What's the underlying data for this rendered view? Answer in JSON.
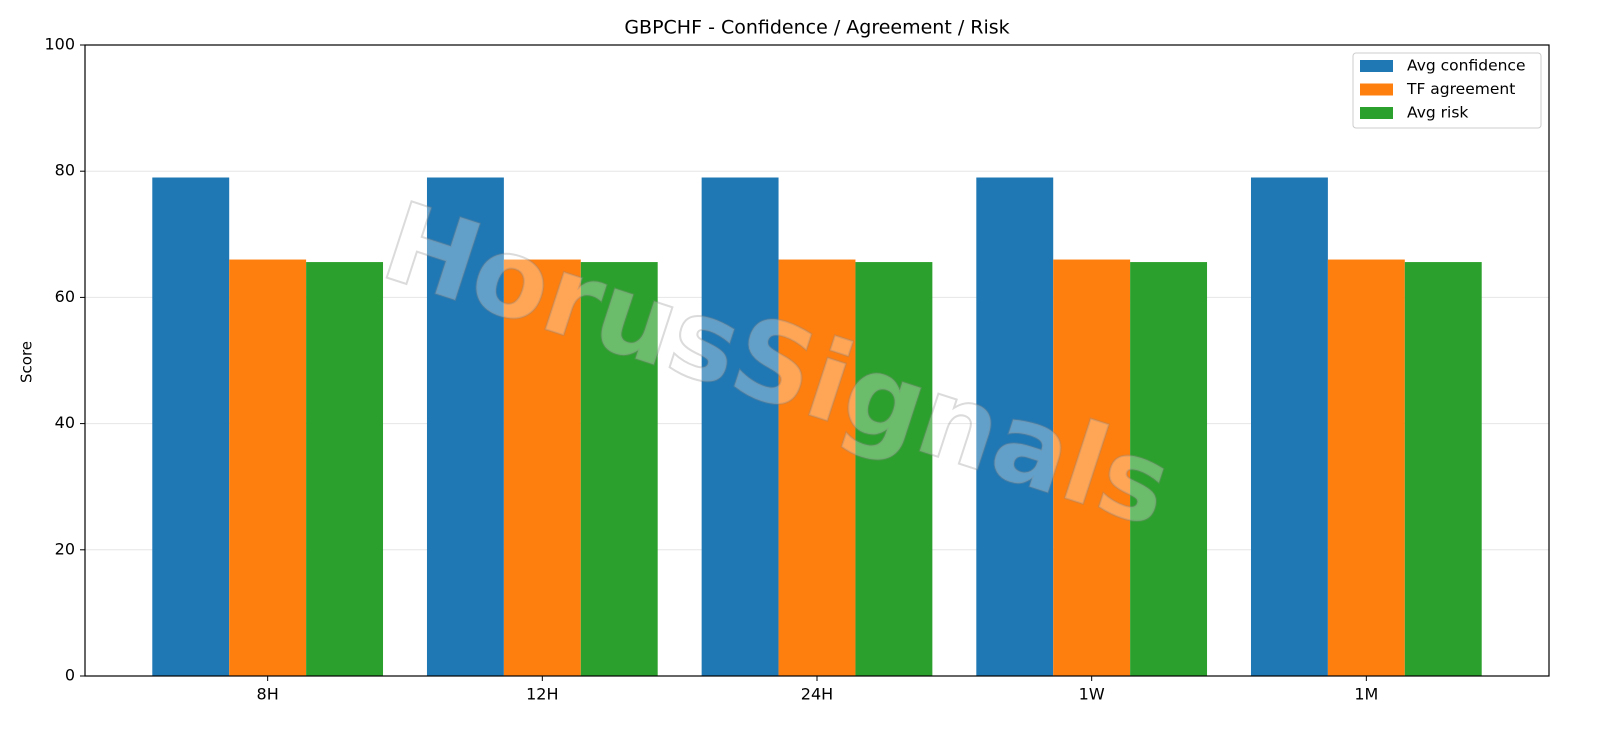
{
  "chart_data": {
    "type": "bar",
    "title": "GBPCHF - Confidence / Agreement / Risk",
    "y_label": "Score",
    "watermark": "HorusSignals",
    "categories": [
      "8H",
      "12H",
      "24H",
      "1W",
      "1M"
    ],
    "series": [
      {
        "name": "Avg confidence",
        "color": "#1f77b4",
        "values": [
          79,
          79,
          79,
          79,
          79
        ]
      },
      {
        "name": "TF agreement",
        "color": "#ff7f0e",
        "values": [
          66,
          66,
          66,
          66,
          66
        ]
      },
      {
        "name": "Avg risk",
        "color": "#2ca02c",
        "values": [
          65.6,
          65.6,
          65.6,
          65.6,
          65.6
        ]
      }
    ],
    "ylim": [
      0,
      100
    ],
    "yticks": [
      0,
      20,
      40,
      60,
      80,
      100
    ],
    "grid": true,
    "legend": "upper right"
  }
}
